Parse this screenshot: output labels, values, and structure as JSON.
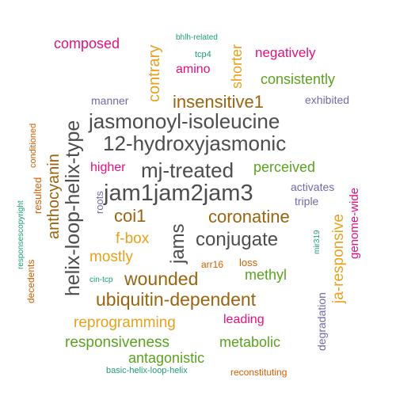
{
  "palette": {
    "gray": "#4d4d4d",
    "brown": "#9a6410",
    "orange": "#e7a11c",
    "green": "#5aa31f",
    "magenta": "#e0117f",
    "purple": "#6f6aa8",
    "teal": "#1b9e77",
    "rust": "#d55e00"
  },
  "words": [
    {
      "text": "jam1jam2jam3",
      "color": "gray"
    },
    {
      "text": "12-hydroxyjasmonic",
      "color": "gray"
    },
    {
      "text": "jasmonoyl-isoleucine",
      "color": "gray"
    },
    {
      "text": "mj-treated",
      "color": "gray"
    },
    {
      "text": "helix-loop-helix-type",
      "color": "gray"
    },
    {
      "text": "conjugate",
      "color": "gray"
    },
    {
      "text": "jams",
      "color": "gray"
    },
    {
      "text": "ubiquitin-dependent",
      "color": "brown"
    },
    {
      "text": "wounded",
      "color": "brown"
    },
    {
      "text": "coronatine",
      "color": "brown"
    },
    {
      "text": "insensitive1",
      "color": "brown"
    },
    {
      "text": "coi1",
      "color": "brown"
    },
    {
      "text": "anthocyanin",
      "color": "brown"
    },
    {
      "text": "f-box",
      "color": "orange"
    },
    {
      "text": "mostly",
      "color": "orange"
    },
    {
      "text": "reprogramming",
      "color": "orange"
    },
    {
      "text": "ja-responsive",
      "color": "orange"
    },
    {
      "text": "contrary",
      "color": "orange"
    },
    {
      "text": "shorter",
      "color": "orange"
    },
    {
      "text": "responsiveness",
      "color": "green"
    },
    {
      "text": "antagonistic",
      "color": "green"
    },
    {
      "text": "metabolic",
      "color": "green"
    },
    {
      "text": "methyl",
      "color": "green"
    },
    {
      "text": "perceived",
      "color": "green"
    },
    {
      "text": "consistently",
      "color": "green"
    },
    {
      "text": "composed",
      "color": "magenta"
    },
    {
      "text": "negatively",
      "color": "magenta"
    },
    {
      "text": "amino",
      "color": "magenta"
    },
    {
      "text": "higher",
      "color": "magenta"
    },
    {
      "text": "leading",
      "color": "magenta"
    },
    {
      "text": "genome-wide",
      "color": "magenta"
    },
    {
      "text": "manner",
      "color": "purple"
    },
    {
      "text": "exhibited",
      "color": "purple"
    },
    {
      "text": "activates",
      "color": "purple"
    },
    {
      "text": "triple",
      "color": "purple"
    },
    {
      "text": "roots",
      "color": "purple"
    },
    {
      "text": "degradation",
      "color": "purple"
    },
    {
      "text": "bhlh-related",
      "color": "teal"
    },
    {
      "text": "tcp4",
      "color": "teal"
    },
    {
      "text": "responsescopyright",
      "color": "teal"
    },
    {
      "text": "cin-tcp",
      "color": "teal"
    },
    {
      "text": "mir319",
      "color": "teal"
    },
    {
      "text": "basic-helix-loop-helix",
      "color": "teal"
    },
    {
      "text": "arr16",
      "color": "rust"
    },
    {
      "text": "loss",
      "color": "rust"
    },
    {
      "text": "conditioned",
      "color": "rust"
    },
    {
      "text": "resulted",
      "color": "rust"
    },
    {
      "text": "decedents",
      "color": "rust"
    },
    {
      "text": "reconstituting",
      "color": "rust"
    }
  ]
}
